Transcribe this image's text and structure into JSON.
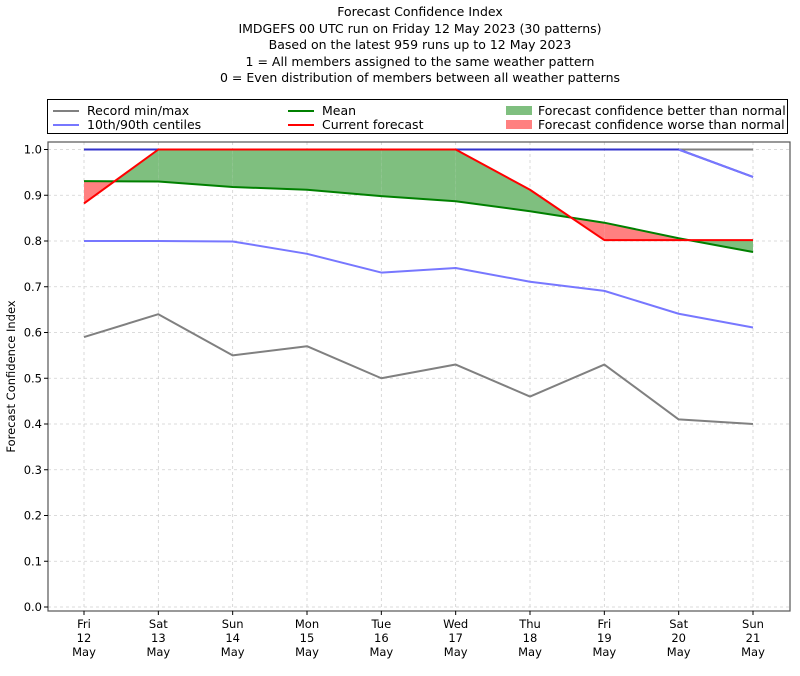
{
  "chart_data": {
    "type": "line",
    "title_lines": [
      "Forecast Confidence Index",
      "IMDGEFS 00 UTC run on Friday 12 May 2023 (30 patterns)",
      "Based on the latest 959 runs up to 12 May 2023",
      "1 = All members assigned to the same weather pattern",
      "0 = Even distribution of members between all weather patterns"
    ],
    "xlabel": "",
    "ylabel": "Forecast Confidence Index",
    "ylim": [
      0.0,
      1.0
    ],
    "yticks": [
      "0.0",
      "0.1",
      "0.2",
      "0.3",
      "0.4",
      "0.5",
      "0.6",
      "0.7",
      "0.8",
      "0.9",
      "1.0"
    ],
    "categories": [
      [
        "Fri",
        "12",
        "May"
      ],
      [
        "Sat",
        "13",
        "May"
      ],
      [
        "Sun",
        "14",
        "May"
      ],
      [
        "Mon",
        "15",
        "May"
      ],
      [
        "Tue",
        "16",
        "May"
      ],
      [
        "Wed",
        "17",
        "May"
      ],
      [
        "Thu",
        "18",
        "May"
      ],
      [
        "Fri",
        "19",
        "May"
      ],
      [
        "Sat",
        "20",
        "May"
      ],
      [
        "Sun",
        "21",
        "May"
      ]
    ],
    "grid": true,
    "legend_position": "top (above plot)",
    "series": [
      {
        "name": "Record min/max",
        "role": "record_max",
        "color": "#808080",
        "values": [
          1.0,
          1.0,
          1.0,
          1.0,
          1.0,
          1.0,
          1.0,
          1.0,
          1.0,
          1.0
        ]
      },
      {
        "name": "Record min/max",
        "role": "record_min",
        "color": "#808080",
        "values": [
          0.59,
          0.64,
          0.55,
          0.57,
          0.5,
          0.53,
          0.46,
          0.53,
          0.41,
          0.4
        ]
      },
      {
        "name": "10th/90th centiles",
        "role": "p90",
        "color": "#7777ff",
        "values": [
          1.0,
          1.0,
          1.0,
          1.0,
          1.0,
          1.0,
          1.0,
          1.0,
          1.0,
          0.94
        ]
      },
      {
        "name": "10th/90th centiles",
        "role": "p10",
        "color": "#7777ff",
        "values": [
          0.8,
          0.8,
          0.799,
          0.772,
          0.731,
          0.741,
          0.711,
          0.691,
          0.641,
          0.611
        ]
      },
      {
        "name": "Mean",
        "role": "mean",
        "color": "#008000",
        "values": [
          0.931,
          0.93,
          0.918,
          0.912,
          0.898,
          0.887,
          0.865,
          0.84,
          0.806,
          0.776
        ]
      },
      {
        "name": "Current forecast",
        "role": "current",
        "color": "#ff0000",
        "values": [
          0.882,
          1.0,
          1.0,
          1.0,
          1.0,
          1.0,
          0.912,
          0.802,
          0.802,
          0.802
        ]
      }
    ],
    "fills": [
      {
        "name": "Forecast confidence better than normal",
        "color": "#7fbf7f",
        "condition": "current > mean"
      },
      {
        "name": "Forecast confidence worse than normal",
        "color": "#ff8080",
        "condition": "current < mean"
      }
    ]
  },
  "legend": {
    "items": [
      {
        "label": "Record min/max",
        "color": "#808080",
        "kind": "line"
      },
      {
        "label": "10th/90th centiles",
        "color": "#7777ff",
        "kind": "line"
      },
      {
        "label": "Mean",
        "color": "#008000",
        "kind": "line"
      },
      {
        "label": "Current forecast",
        "color": "#ff0000",
        "kind": "line"
      },
      {
        "label": "Forecast confidence better than normal",
        "color": "#7fbf7f",
        "kind": "patch"
      },
      {
        "label": "Forecast confidence worse than normal",
        "color": "#ff8080",
        "kind": "patch"
      }
    ]
  }
}
